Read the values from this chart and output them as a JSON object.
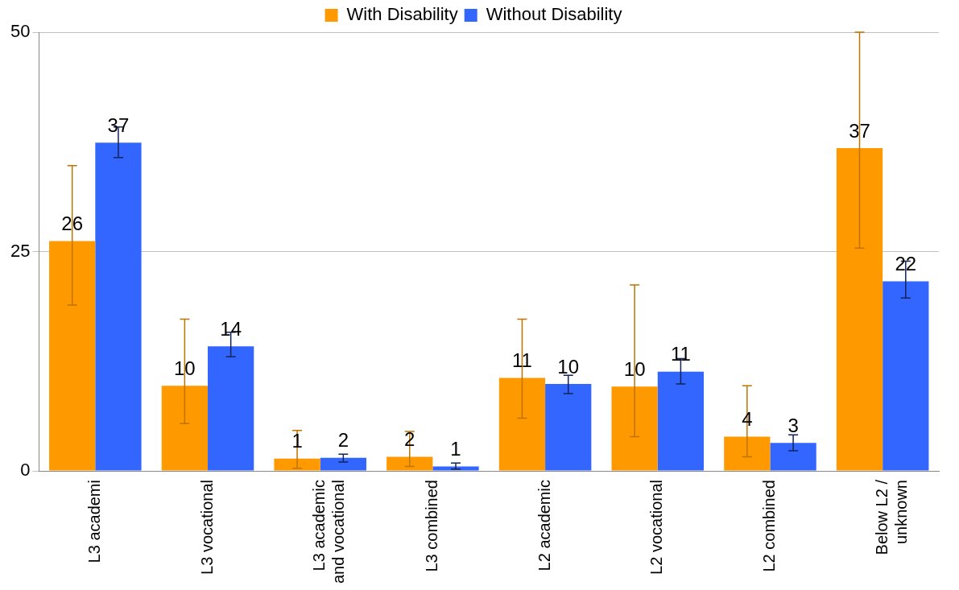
{
  "chart_data": {
    "type": "bar",
    "categories": [
      "L3 academi",
      "L3 vocational",
      "L3 academic and vocational",
      "L3 combined",
      "L2 academic",
      "L2 vocational",
      "L2 combined",
      "Below L2 / unknown"
    ],
    "series": [
      {
        "name": "With Disability",
        "color": "#ff9900",
        "values": [
          26.2,
          9.7,
          1.4,
          1.6,
          10.6,
          9.6,
          3.9,
          36.8
        ],
        "errors": [
          [
            18.9,
            34.8
          ],
          [
            5.4,
            17.3
          ],
          [
            0.3,
            4.6
          ],
          [
            0.5,
            4.5
          ],
          [
            6.0,
            17.3
          ],
          [
            3.9,
            21.2
          ],
          [
            1.6,
            9.7
          ],
          [
            25.4,
            50.0
          ]
        ],
        "value_labels": [
          "26",
          "10",
          "1",
          "2",
          "11",
          "10",
          "4",
          "37"
        ]
      },
      {
        "name": "Without Disability",
        "color": "#3366ff",
        "values": [
          37.4,
          14.2,
          1.5,
          0.5,
          9.9,
          11.3,
          3.2,
          21.6
        ],
        "errors": [
          [
            35.7,
            39.2
          ],
          [
            13.0,
            15.8
          ],
          [
            1.0,
            1.9
          ],
          [
            0.2,
            0.9
          ],
          [
            8.8,
            10.9
          ],
          [
            9.9,
            12.8
          ],
          [
            2.3,
            4.1
          ],
          [
            19.7,
            23.9
          ]
        ],
        "value_labels": [
          "37",
          "14",
          "2",
          "1",
          "10",
          "11",
          "3",
          "22"
        ]
      }
    ],
    "ylim": [
      0,
      50
    ],
    "yticks": [
      0,
      25,
      50
    ],
    "grid": "y",
    "legend": "top"
  }
}
